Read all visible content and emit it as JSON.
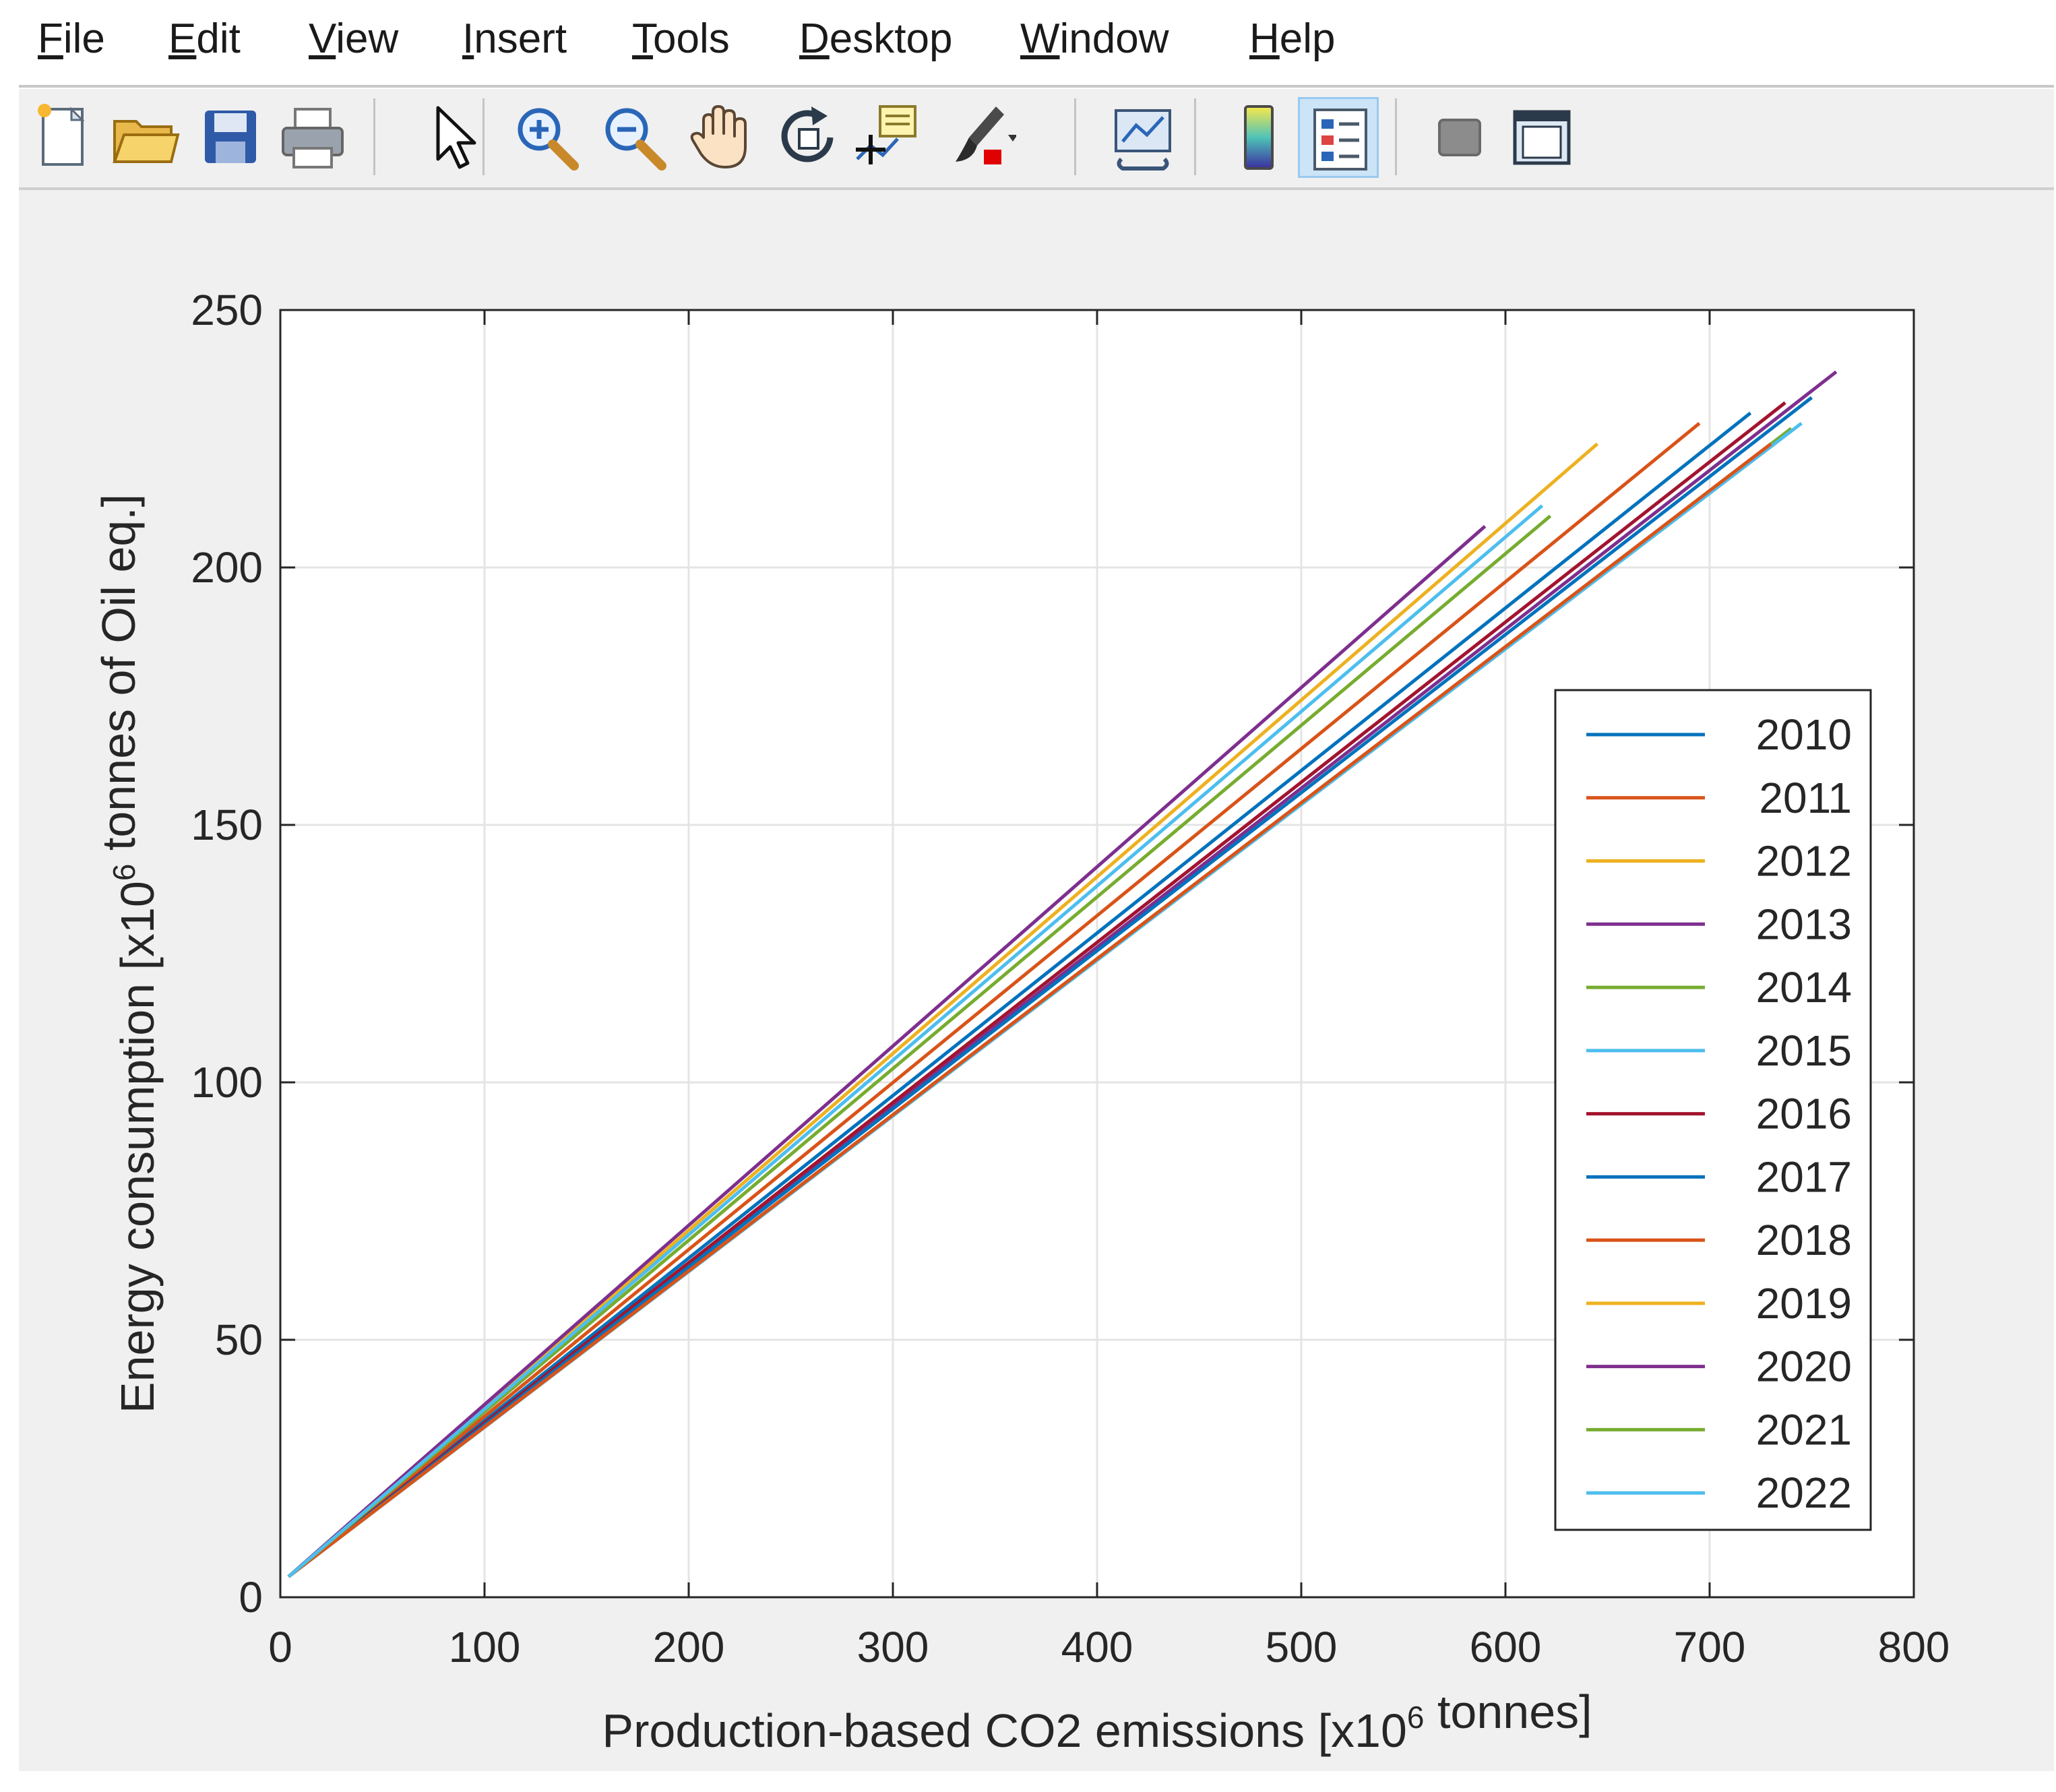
{
  "menu": {
    "items": [
      {
        "mn": "F",
        "rest": "ile"
      },
      {
        "mn": "E",
        "rest": "dit"
      },
      {
        "mn": "V",
        "rest": "iew"
      },
      {
        "mn": "I",
        "rest": "nsert"
      },
      {
        "mn": "T",
        "rest": "ools"
      },
      {
        "mn": "D",
        "rest": "esktop"
      },
      {
        "mn": "W",
        "rest": "indow"
      },
      {
        "mn": "H",
        "rest": "elp"
      }
    ]
  },
  "toolbar": {
    "buttons": [
      {
        "icon": "new-figure-icon"
      },
      {
        "icon": "open-file-icon"
      },
      {
        "icon": "save-icon"
      },
      {
        "icon": "print-icon"
      },
      {
        "icon": "edit-plot-arrow-icon"
      },
      {
        "icon": "zoom-in-icon"
      },
      {
        "icon": "zoom-out-icon"
      },
      {
        "icon": "pan-hand-icon"
      },
      {
        "icon": "rotate-3d-icon"
      },
      {
        "icon": "data-cursor-icon"
      },
      {
        "icon": "brush-icon"
      },
      {
        "icon": "link-plot-icon"
      },
      {
        "icon": "colorbar-icon"
      },
      {
        "icon": "legend-icon",
        "active": true
      },
      {
        "icon": "hide-plot-tools-icon"
      },
      {
        "icon": "show-plot-tools-icon"
      }
    ]
  },
  "chart_data": {
    "type": "line",
    "xlabel": "Production-based CO2 emissions [x10^6 tonnes]",
    "ylabel": "Energy consumption [x10^6 tonnes of Oil eq.]",
    "xlim": [
      0,
      800
    ],
    "ylim": [
      0,
      250
    ],
    "xticks": [
      0,
      100,
      200,
      300,
      400,
      500,
      600,
      700,
      800
    ],
    "yticks": [
      0,
      50,
      100,
      150,
      200,
      250
    ],
    "grid": true,
    "legend_position": "bottom-right",
    "series": [
      {
        "name": "2010",
        "color": "#0072BD",
        "x": [
          4,
          720
        ],
        "y": [
          4,
          230
        ]
      },
      {
        "name": "2011",
        "color": "#D95319",
        "x": [
          4,
          695
        ],
        "y": [
          4,
          228
        ]
      },
      {
        "name": "2012",
        "color": "#EDB120",
        "x": [
          4,
          735
        ],
        "y": [
          4,
          225
        ]
      },
      {
        "name": "2013",
        "color": "#7E2F8E",
        "x": [
          4,
          762
        ],
        "y": [
          4,
          238
        ]
      },
      {
        "name": "2014",
        "color": "#77AC30",
        "x": [
          4,
          740
        ],
        "y": [
          4,
          227
        ]
      },
      {
        "name": "2015",
        "color": "#4DBEEE",
        "x": [
          4,
          745
        ],
        "y": [
          4,
          228
        ]
      },
      {
        "name": "2016",
        "color": "#A2142F",
        "x": [
          4,
          737
        ],
        "y": [
          4,
          232
        ]
      },
      {
        "name": "2017",
        "color": "#0072BD",
        "x": [
          4,
          750
        ],
        "y": [
          4,
          233
        ]
      },
      {
        "name": "2018",
        "color": "#D95319",
        "x": [
          4,
          730
        ],
        "y": [
          4,
          224
        ]
      },
      {
        "name": "2019",
        "color": "#EDB120",
        "x": [
          4,
          645
        ],
        "y": [
          4,
          224
        ]
      },
      {
        "name": "2020",
        "color": "#7E2F8E",
        "x": [
          4,
          590
        ],
        "y": [
          4,
          208
        ]
      },
      {
        "name": "2021",
        "color": "#77AC30",
        "x": [
          4,
          622
        ],
        "y": [
          4,
          210
        ]
      },
      {
        "name": "2022",
        "color": "#4DBEEE",
        "x": [
          4,
          618
        ],
        "y": [
          4,
          212
        ]
      }
    ]
  }
}
